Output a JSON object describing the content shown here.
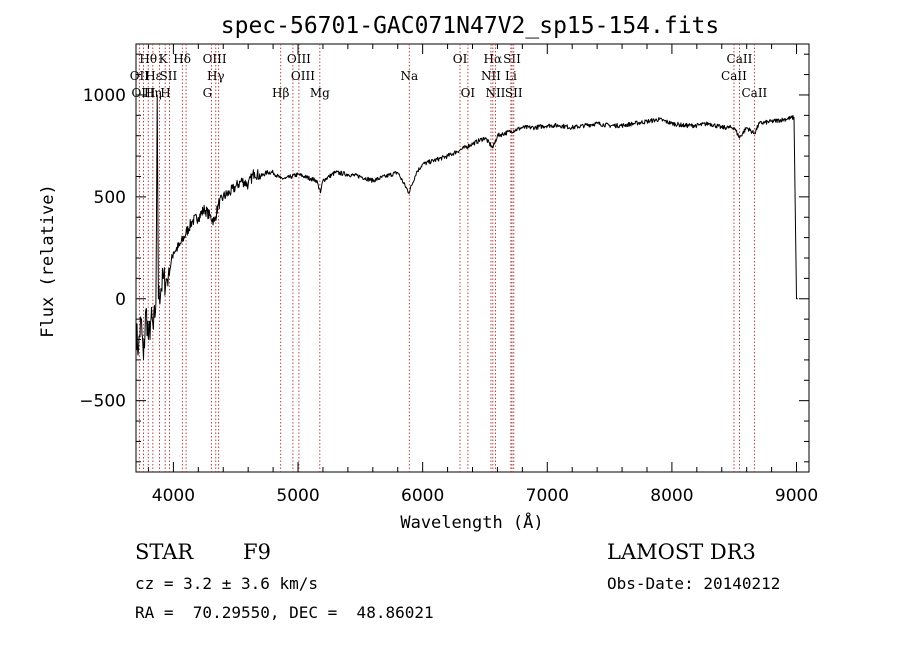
{
  "chart_data": {
    "type": "line",
    "title": "spec-56701-GAC071N47V2_sp15-154.fits",
    "xlabel": "Wavelength (Å)",
    "ylabel": "Flux (relative)",
    "xlim": [
      3700,
      9100
    ],
    "ylim": [
      -850,
      1250
    ],
    "xticks": [
      4000,
      5000,
      6000,
      7000,
      8000,
      9000
    ],
    "yticks": [
      -500,
      0,
      500,
      1000
    ],
    "series": [
      {
        "name": "spectrum",
        "x": [
          3700,
          3720,
          3740,
          3760,
          3780,
          3800,
          3820,
          3840,
          3860,
          3870,
          3880,
          3900,
          3920,
          3940,
          3960,
          3980,
          4000,
          4050,
          4100,
          4150,
          4200,
          4250,
          4300,
          4330,
          4360,
          4400,
          4450,
          4500,
          4550,
          4600,
          4650,
          4700,
          4750,
          4800,
          4860,
          4900,
          4950,
          5000,
          5050,
          5100,
          5150,
          5180,
          5200,
          5250,
          5300,
          5400,
          5500,
          5600,
          5700,
          5800,
          5890,
          5950,
          6000,
          6100,
          6200,
          6300,
          6400,
          6500,
          6563,
          6600,
          6700,
          6800,
          6900,
          7000,
          7100,
          7200,
          7300,
          7400,
          7500,
          7600,
          7700,
          7800,
          7900,
          8000,
          8100,
          8200,
          8300,
          8400,
          8500,
          8542,
          8600,
          8662,
          8700,
          8800,
          8900,
          8980,
          9000,
          9010
        ],
        "y": [
          -150,
          -250,
          -100,
          -300,
          -50,
          -200,
          -100,
          -150,
          -20,
          1000,
          0,
          50,
          100,
          80,
          120,
          170,
          230,
          260,
          320,
          380,
          400,
          440,
          400,
          380,
          460,
          500,
          520,
          550,
          580,
          560,
          620,
          600,
          620,
          620,
          590,
          590,
          600,
          610,
          600,
          590,
          580,
          520,
          580,
          600,
          620,
          610,
          600,
          580,
          600,
          620,
          520,
          620,
          660,
          680,
          700,
          730,
          760,
          790,
          740,
          800,
          820,
          840,
          840,
          850,
          850,
          840,
          850,
          860,
          850,
          850,
          860,
          870,
          880,
          860,
          850,
          850,
          860,
          840,
          840,
          790,
          840,
          810,
          860,
          870,
          880,
          890,
          0,
          0
        ]
      }
    ],
    "lines": [
      {
        "label": "Hθ",
        "wave": 3798,
        "row": 1,
        "dx": 0
      },
      {
        "label": "OII",
        "wave": 3727,
        "row": 2,
        "dx": 0
      },
      {
        "label": "OIII",
        "wave": 3760,
        "row": 3,
        "dx": 0
      },
      {
        "label": "Hη",
        "wave": 3835,
        "row": 3,
        "dx": 0
      },
      {
        "label": "Hε",
        "wave": 3889,
        "row": 2,
        "dx": -6
      },
      {
        "label": "K",
        "wave": 3934,
        "row": 1,
        "dx": -2
      },
      {
        "label": "H",
        "wave": 3969,
        "row": 3,
        "dx": -4
      },
      {
        "label": "SII",
        "wave": 4072,
        "row": 2,
        "dx": -14
      },
      {
        "label": "Hδ",
        "wave": 4102,
        "row": 1,
        "dx": -4
      },
      {
        "label": "OIII",
        "wave": 4363,
        "row": 1,
        "dx": -4
      },
      {
        "label": "Hγ",
        "wave": 4340,
        "row": 2,
        "dx": 0
      },
      {
        "label": "G",
        "wave": 4305,
        "row": 3,
        "dx": -4
      },
      {
        "label": "Hβ",
        "wave": 4861,
        "row": 3,
        "dx": 0
      },
      {
        "label": "OIII",
        "wave": 5007,
        "row": 1,
        "dx": 0
      },
      {
        "label": "OIII",
        "wave": 4959,
        "row": 2,
        "dx": 10
      },
      {
        "label": "Mg",
        "wave": 5175,
        "row": 3,
        "dx": 0
      },
      {
        "label": "Na",
        "wave": 5893,
        "row": 2,
        "dx": 0
      },
      {
        "label": "OI",
        "wave": 6300,
        "row": 1,
        "dx": 0
      },
      {
        "label": "OI",
        "wave": 6363,
        "row": 3,
        "dx": 0
      },
      {
        "label": "Hα",
        "wave": 6563,
        "row": 1,
        "dx": 0
      },
      {
        "label": "NII",
        "wave": 6548,
        "row": 2,
        "dx": 0
      },
      {
        "label": "NII",
        "wave": 6584,
        "row": 3,
        "dx": 0
      },
      {
        "label": "SII",
        "wave": 6717,
        "row": 1,
        "dx": 0
      },
      {
        "label": "Li",
        "wave": 6708,
        "row": 2,
        "dx": 0
      },
      {
        "label": "SII",
        "wave": 6731,
        "row": 3,
        "dx": 0
      },
      {
        "label": "CaII",
        "wave": 8542,
        "row": 1,
        "dx": 0
      },
      {
        "label": "CaII",
        "wave": 8498,
        "row": 2,
        "dx": 0
      },
      {
        "label": "CaII",
        "wave": 8662,
        "row": 3,
        "dx": 0
      }
    ]
  },
  "info": {
    "object_class": "STAR",
    "subclass": "F9",
    "survey": "LAMOST DR3",
    "cz": "cz = 3.2 ± 3.6 km/s",
    "obs_date": "Obs-Date: 20140212",
    "coords": "RA =  70.29550, DEC =  48.86021"
  },
  "colors": {
    "line_marker": "#b03030",
    "spectrum": "#000000"
  }
}
